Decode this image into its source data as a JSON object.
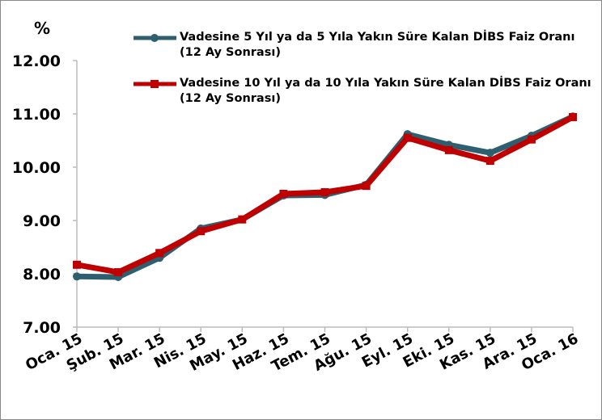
{
  "chart_data": {
    "type": "line",
    "y_label": "%",
    "categories": [
      "Oca. 15",
      "Şub. 15",
      "Mar. 15",
      "Nis. 15",
      "May. 15",
      "Haz. 15",
      "Tem. 15",
      "Ağu. 15",
      "Eyl. 15",
      "Eki. 15",
      "Kas. 15",
      "Ara. 15",
      "Oca. 16"
    ],
    "series": [
      {
        "name": "Vadesine 5 Yıl ya da 5 Yıla Yakın Süre Kalan DİBS Faiz Oranı (12 Ay Sonrası)",
        "color": "#2e5f6e",
        "marker": "circle",
        "values": [
          7.95,
          7.94,
          8.3,
          8.85,
          9.02,
          9.47,
          9.48,
          9.67,
          10.62,
          10.42,
          10.27,
          10.59,
          10.95
        ]
      },
      {
        "name": "Vadesine 10 Yıl ya da 10 Yıla Yakın Süre Kalan DİBS Faiz Oranı (12 Ay Sonrası)",
        "color": "#c00000",
        "marker": "square",
        "values": [
          8.17,
          8.03,
          8.39,
          8.8,
          9.02,
          9.5,
          9.53,
          9.65,
          10.55,
          10.32,
          10.12,
          10.52,
          10.94
        ]
      }
    ],
    "ylim": [
      7,
      12
    ],
    "yticks": [
      {
        "value": 7,
        "label": "7.00"
      },
      {
        "value": 8,
        "label": "8.00"
      },
      {
        "value": 9,
        "label": "9.00"
      },
      {
        "value": 10,
        "label": "10.00"
      },
      {
        "value": 11,
        "label": "11.00"
      },
      {
        "value": 12,
        "label": "12.00"
      }
    ],
    "grid": false
  }
}
